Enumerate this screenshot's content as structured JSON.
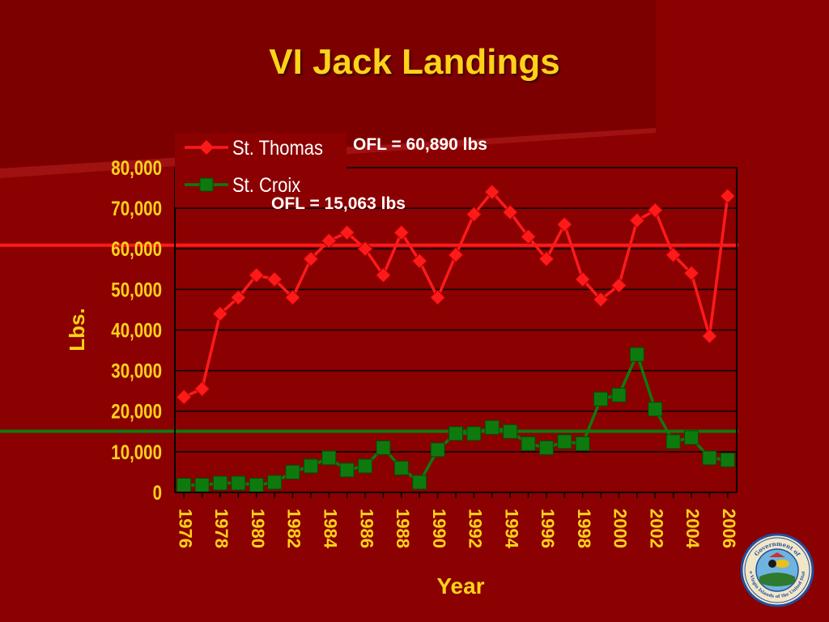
{
  "slide": {
    "title": "VI Jack Landings"
  },
  "ofl_labels": {
    "st_thomas": "OFL = 60,890 lbs",
    "st_croix": "OFL = 15,063 lbs"
  },
  "seal": {
    "text_top": "Government of",
    "text_bottom": "the Virgin Islands of the United States"
  },
  "colors": {
    "background": "#8b0000",
    "title": "#ffd21a",
    "axis_text": "#ffd21a",
    "st_thomas": "#ff1a1a",
    "st_croix": "#0e7a0e",
    "grid": "#000000"
  },
  "chart_data": {
    "type": "line",
    "title": "",
    "xlabel": "Year",
    "ylabel": "Lbs.",
    "ylim": [
      0,
      80000
    ],
    "xlim": [
      1976,
      2007
    ],
    "yticks": [
      0,
      10000,
      20000,
      30000,
      40000,
      50000,
      60000,
      70000,
      80000
    ],
    "ytick_labels": [
      "0",
      "10,000",
      "20,000",
      "30,000",
      "40,000",
      "50,000",
      "60,000",
      "70,000",
      "80,000"
    ],
    "xticks": [
      1976,
      1978,
      1980,
      1982,
      1984,
      1986,
      1988,
      1990,
      1992,
      1994,
      1996,
      1998,
      2000,
      2002,
      2004,
      2006
    ],
    "xtick_labels": [
      "1976",
      "1978",
      "1980",
      "1982",
      "1984",
      "1986",
      "1988",
      "1990",
      "1992",
      "1994",
      "1996",
      "1998",
      "2000",
      "2002",
      "2004",
      "2006"
    ],
    "grid": "horizontal",
    "legend": "top-left",
    "x": [
      1976,
      1977,
      1978,
      1979,
      1980,
      1981,
      1982,
      1983,
      1984,
      1985,
      1986,
      1987,
      1988,
      1989,
      1990,
      1991,
      1992,
      1993,
      1994,
      1995,
      1996,
      1997,
      1998,
      1999,
      2000,
      2001,
      2002,
      2003,
      2004,
      2005,
      2006
    ],
    "series": [
      {
        "name": "St. Thomas",
        "marker": "diamond",
        "color": "#ff1a1a",
        "values": [
          23500,
          25500,
          44000,
          48000,
          53500,
          52500,
          48000,
          57500,
          62000,
          64000,
          60000,
          53500,
          64000,
          57000,
          48000,
          58500,
          68500,
          74000,
          69000,
          63000,
          57500,
          66000,
          52500,
          47500,
          51000,
          67000,
          69500,
          58500,
          54000,
          38500,
          73000
        ]
      },
      {
        "name": "St. Croix",
        "marker": "square",
        "color": "#0e7a0e",
        "values": [
          1800,
          1800,
          2300,
          2300,
          1800,
          2500,
          5000,
          6500,
          8500,
          5500,
          6500,
          11000,
          6000,
          2500,
          10500,
          14500,
          14500,
          16000,
          15000,
          12000,
          11000,
          12500,
          12000,
          23000,
          24000,
          34000,
          20500,
          12500,
          13500,
          8500,
          8000
        ]
      }
    ],
    "reference_lines": [
      {
        "series": "St. Thomas",
        "label": "OFL = 60,890 lbs",
        "value": 60890
      },
      {
        "series": "St. Croix",
        "label": "OFL = 15,063 lbs",
        "value": 15063
      }
    ]
  }
}
